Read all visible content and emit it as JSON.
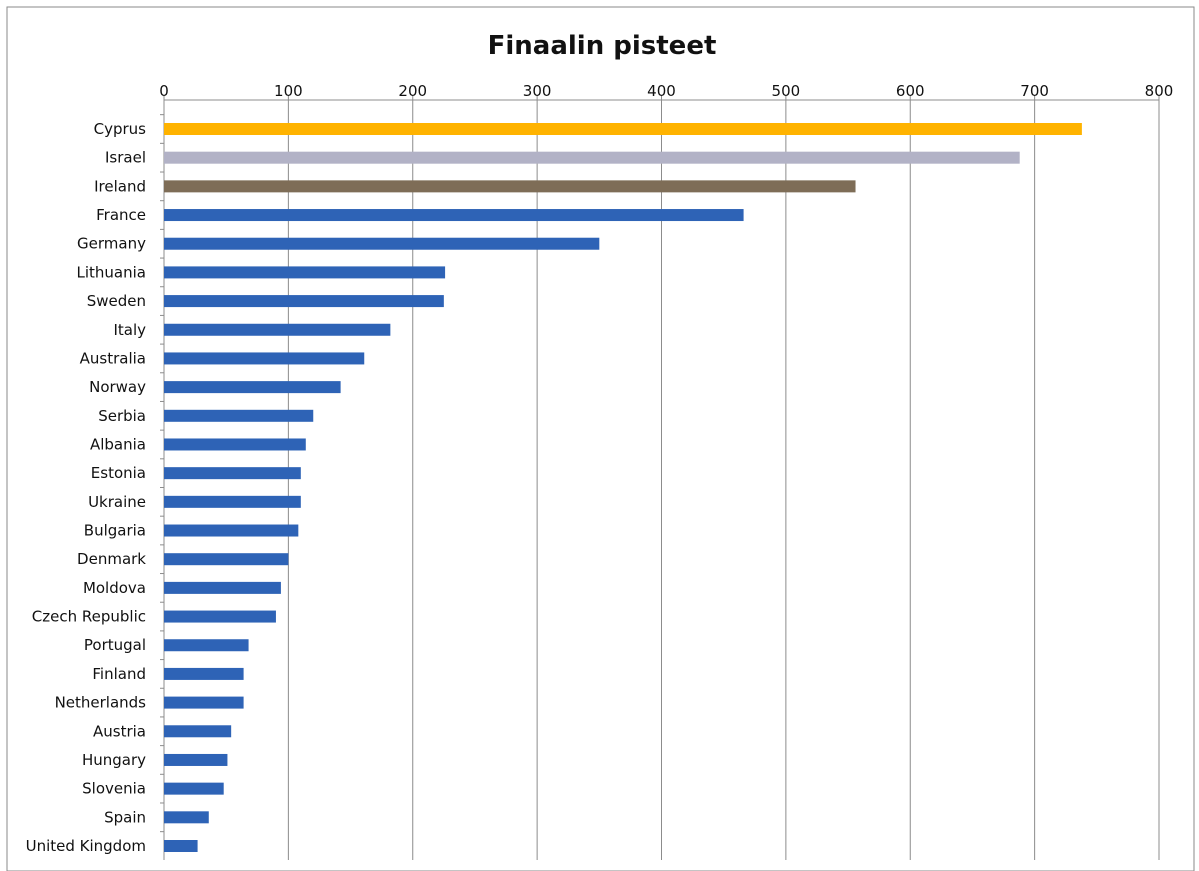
{
  "chart_data": {
    "type": "bar",
    "orientation": "horizontal",
    "title": "Finaalin pisteet",
    "xlabel": "",
    "ylabel": "",
    "xlim": [
      0,
      800
    ],
    "x_ticks": [
      "0",
      "100",
      "200",
      "300",
      "400",
      "500",
      "600",
      "700",
      "800"
    ],
    "x_axis_position": "top",
    "grid": "vertical",
    "legend": "none",
    "categories": [
      "Cyprus",
      "Israel",
      "Ireland",
      "France",
      "Germany",
      "Lithuania",
      "Sweden",
      "Italy",
      "Australia",
      "Norway",
      "Serbia",
      "Albania",
      "Estonia",
      "Ukraine",
      "Bulgaria",
      "Denmark",
      "Moldova",
      "Czech Republic",
      "Portugal",
      "Finland",
      "Netherlands",
      "Austria",
      "Hungary",
      "Slovenia",
      "Spain",
      "United Kingdom"
    ],
    "values": [
      738,
      688,
      556,
      466,
      350,
      226,
      225,
      182,
      161,
      142,
      120,
      114,
      110,
      110,
      108,
      100,
      94,
      90,
      68,
      64,
      64,
      54,
      51,
      48,
      36,
      27
    ],
    "bar_colors": [
      "#FFB300",
      "#B2B2C6",
      "#7E6D57",
      "#2E63B6",
      "#2E63B6",
      "#2E63B6",
      "#2E63B6",
      "#2E63B6",
      "#2E63B6",
      "#2E63B6",
      "#2E63B6",
      "#2E63B6",
      "#2E63B6",
      "#2E63B6",
      "#2E63B6",
      "#2E63B6",
      "#2E63B6",
      "#2E63B6",
      "#2E63B6",
      "#2E63B6",
      "#2E63B6",
      "#2E63B6",
      "#2E63B6",
      "#2E63B6",
      "#2E63B6",
      "#2E63B6"
    ]
  }
}
